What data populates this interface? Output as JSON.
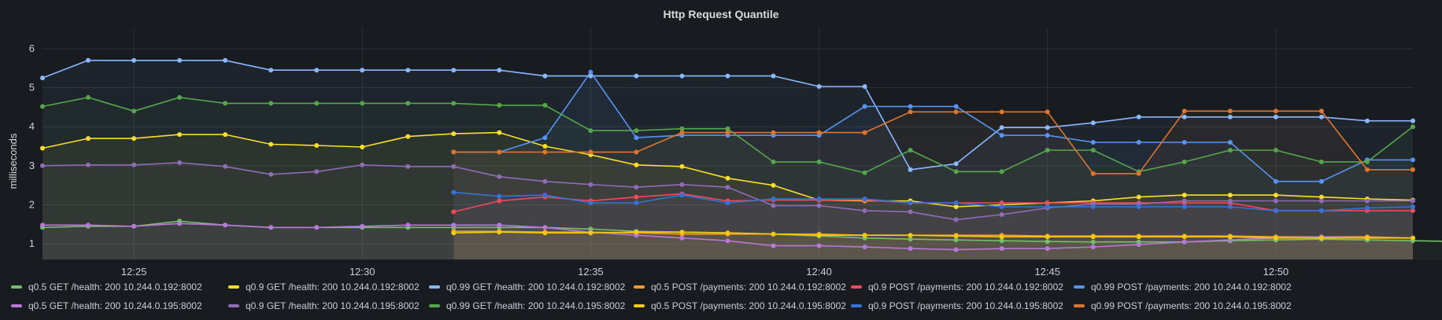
{
  "chart_data": {
    "type": "line",
    "title": "Http Request Quantile",
    "ylabel": "milliseconds",
    "ylim": [
      0.6,
      6.4
    ],
    "yticks": [
      1,
      2,
      3,
      4,
      5,
      6
    ],
    "x_start": "12:23",
    "x_end": "12:53",
    "x_step_minutes": 1,
    "xticks": [
      "12:25",
      "12:30",
      "12:35",
      "12:40",
      "12:45",
      "12:50"
    ],
    "grid": true,
    "legend_position": "bottom",
    "series": [
      {
        "name": "q0.5 GET /health: 200 10.244.0.192:8002",
        "color": "#73bf69",
        "start_index": 0,
        "values": [
          1.42,
          1.45,
          1.45,
          1.58,
          1.48,
          1.42,
          1.42,
          1.42,
          1.42,
          1.42,
          1.42,
          1.42,
          1.38,
          1.32,
          1.3,
          1.28,
          1.25,
          1.2,
          1.15,
          1.12,
          1.1,
          1.08,
          1.06,
          1.05,
          1.05,
          1.05,
          1.08,
          1.1,
          1.12,
          1.1,
          1.08,
          1.06
        ]
      },
      {
        "name": "q0.9 GET /health: 200 10.244.0.192:8002",
        "color": "#fade2a",
        "start_index": 0,
        "values": [
          3.45,
          3.7,
          3.7,
          3.8,
          3.8,
          3.55,
          3.52,
          3.48,
          3.75,
          3.82,
          3.85,
          3.5,
          3.28,
          3.02,
          2.98,
          2.68,
          2.5,
          2.12,
          2.1,
          2.1,
          1.95,
          2.0,
          2.05,
          2.1,
          2.2,
          2.25,
          2.25,
          2.25,
          2.2,
          2.15,
          2.12
        ]
      },
      {
        "name": "q0.99 GET /health: 200 10.244.0.192:8002",
        "color": "#8ab8ff",
        "start_index": 0,
        "values": [
          5.25,
          5.7,
          5.7,
          5.7,
          5.7,
          5.45,
          5.45,
          5.45,
          5.45,
          5.45,
          5.45,
          5.3,
          5.3,
          5.3,
          5.3,
          5.3,
          5.3,
          5.03,
          5.03,
          2.9,
          3.05,
          3.98,
          3.98,
          4.1,
          4.25,
          4.25,
          4.25,
          4.25,
          4.25,
          4.15,
          4.15
        ]
      },
      {
        "name": "q0.5 POST /payments: 200 10.244.0.192:8002",
        "color": "#ff9830",
        "start_index": 9,
        "values": [
          1.32,
          1.32,
          1.3,
          1.3,
          1.28,
          1.25,
          1.25,
          1.25,
          1.25,
          1.22,
          1.22,
          1.22,
          1.22,
          1.2,
          1.2,
          1.2,
          1.2,
          1.2,
          1.18,
          1.18,
          1.18,
          1.15
        ]
      },
      {
        "name": "q0.9 POST /payments: 200 10.244.0.192:8002",
        "color": "#f2495c",
        "start_index": 9,
        "values": [
          1.82,
          2.1,
          2.2,
          2.1,
          2.2,
          2.28,
          2.1,
          2.12,
          2.12,
          2.12,
          2.05,
          2.05,
          2.05,
          2.05,
          2.05,
          2.05,
          2.05,
          2.05,
          1.85,
          1.85,
          1.85,
          1.85
        ]
      },
      {
        "name": "q0.99 POST /payments: 200 10.244.0.192:8002",
        "color": "#5794f2",
        "start_index": 9,
        "values": [
          3.35,
          3.35,
          3.72,
          5.4,
          3.72,
          3.78,
          3.78,
          3.78,
          3.78,
          4.52,
          4.52,
          4.52,
          3.78,
          3.78,
          3.6,
          3.6,
          3.6,
          3.6,
          2.6,
          2.6,
          3.15,
          3.15
        ]
      },
      {
        "name": "q0.5 GET /health: 200 10.244.0.195:8002",
        "color": "#b877d9",
        "start_index": 0,
        "values": [
          1.48,
          1.48,
          1.45,
          1.52,
          1.48,
          1.42,
          1.42,
          1.45,
          1.48,
          1.48,
          1.48,
          1.42,
          1.3,
          1.22,
          1.15,
          1.08,
          0.95,
          0.95,
          0.92,
          0.88,
          0.85,
          0.88,
          0.88,
          0.92,
          0.98,
          1.05,
          1.1,
          1.15,
          1.18,
          1.15,
          1.15
        ]
      },
      {
        "name": "q0.9 GET /health: 200 10.244.0.195:8002",
        "color": "#8f6bb8",
        "start_index": 0,
        "values": [
          3.0,
          3.02,
          3.02,
          3.08,
          2.98,
          2.78,
          2.85,
          3.02,
          2.98,
          2.98,
          2.72,
          2.6,
          2.52,
          2.45,
          2.52,
          2.45,
          1.98,
          1.98,
          1.85,
          1.82,
          1.62,
          1.75,
          1.92,
          2.02,
          2.02,
          2.1,
          2.1,
          2.1,
          2.1,
          2.1,
          2.1
        ]
      },
      {
        "name": "q0.99 GET /health: 200 10.244.0.195:8002",
        "color": "#56a64b",
        "start_index": 0,
        "values": [
          4.52,
          4.75,
          4.4,
          4.75,
          4.6,
          4.6,
          4.6,
          4.6,
          4.6,
          4.6,
          4.55,
          4.55,
          3.9,
          3.9,
          3.95,
          3.95,
          3.1,
          3.1,
          2.82,
          3.4,
          2.85,
          2.85,
          3.4,
          3.4,
          2.85,
          3.1,
          3.4,
          3.4,
          3.1,
          3.1,
          4.0
        ]
      },
      {
        "name": "q0.5 POST /payments: 200 10.244.0.195:8002",
        "color": "#f2cc0c",
        "start_index": 9,
        "values": [
          1.28,
          1.3,
          1.28,
          1.28,
          1.3,
          1.3,
          1.28,
          1.25,
          1.22,
          1.22,
          1.22,
          1.2,
          1.18,
          1.18,
          1.18,
          1.18,
          1.18,
          1.18,
          1.15,
          1.15,
          1.15,
          1.15
        ]
      },
      {
        "name": "q0.9 POST /payments: 200 10.244.0.195:8002",
        "color": "#3274d9",
        "start_index": 9,
        "values": [
          2.32,
          2.22,
          2.25,
          2.05,
          2.05,
          2.25,
          2.05,
          2.15,
          2.15,
          2.15,
          2.05,
          2.05,
          1.95,
          1.95,
          1.95,
          1.95,
          1.95,
          1.95,
          1.85,
          1.85,
          1.92,
          1.95
        ]
      },
      {
        "name": "q0.99 POST /payments: 200 10.244.0.195:8002",
        "color": "#e0752d",
        "start_index": 9,
        "values": [
          3.35,
          3.35,
          3.35,
          3.35,
          3.35,
          3.85,
          3.85,
          3.85,
          3.85,
          3.85,
          4.38,
          4.38,
          4.38,
          4.38,
          2.8,
          2.8,
          4.4,
          4.4,
          4.4,
          4.4,
          2.9,
          2.9
        ]
      }
    ]
  }
}
